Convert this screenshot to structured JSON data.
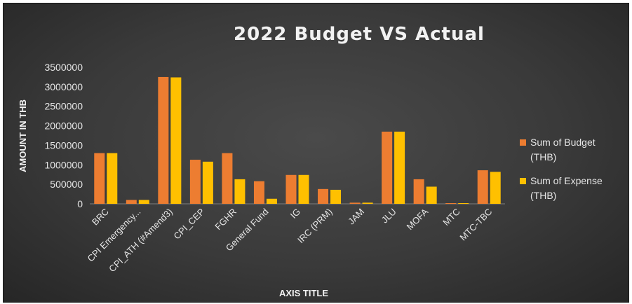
{
  "chart_data": {
    "type": "bar",
    "title": "2022 Budget VS Actual",
    "xlabel": "AXIS TITLE",
    "ylabel": "AMOUNT IN THB",
    "ylim": [
      0,
      3500000
    ],
    "yticks": [
      "0",
      "500000",
      "1000000",
      "1500000",
      "2000000",
      "2500000",
      "3000000",
      "3500000"
    ],
    "grid": false,
    "legend_position": "right",
    "categories": [
      "BRC",
      "CPI Emergency...",
      "CPI_ATH (#Amend3)",
      "CPI_CEP",
      "FGHR",
      "General Fund",
      "IG",
      "IRC (PRM)",
      "JAM",
      "JLU",
      "MOFA",
      "MTC",
      "MTC-TBC"
    ],
    "series": [
      {
        "name": "Sum of Budget (THB)",
        "name_lines": [
          "Sum of Budget",
          "(THB)"
        ],
        "color": "#ed7d31",
        "values": [
          1300000,
          100000,
          3250000,
          1130000,
          1300000,
          580000,
          740000,
          380000,
          30000,
          1850000,
          630000,
          10000,
          860000
        ]
      },
      {
        "name": "Sum of Expense (THB)",
        "name_lines": [
          "Sum of Expense",
          "(THB)"
        ],
        "color": "#ffc000",
        "values": [
          1300000,
          100000,
          3240000,
          1080000,
          630000,
          130000,
          740000,
          360000,
          30000,
          1850000,
          440000,
          10000,
          820000
        ]
      }
    ]
  }
}
